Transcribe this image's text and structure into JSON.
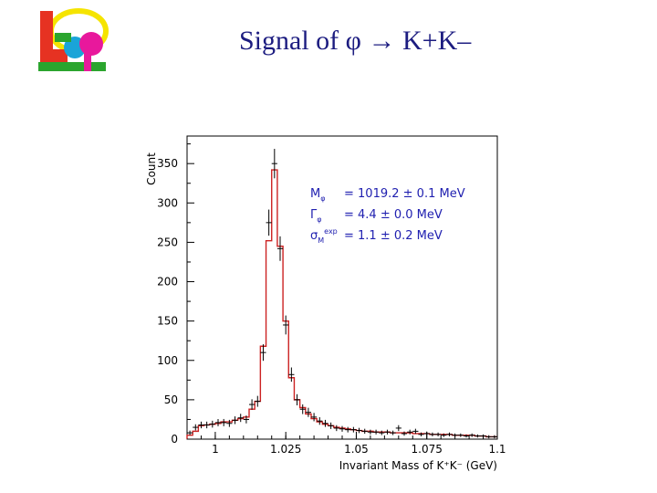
{
  "slide": {
    "title_prefix": "Signal of ",
    "title_phi": "φ",
    "title_arrow": " → ",
    "title_suffix": "K+K–"
  },
  "logo": {
    "name": "lcsp-logo-icon",
    "colors": [
      "#e63222",
      "#f5e400",
      "#1aa4d8",
      "#2ba52e",
      "#e8189c"
    ]
  },
  "chart_data": {
    "type": "bar",
    "style": "histogram-with-fit",
    "xlabel": "Invariant Mass of K⁺K⁻ (GeV)",
    "ylabel": "Count",
    "xlim": [
      0.99,
      1.1
    ],
    "ylim": [
      0,
      385
    ],
    "xticks": [
      1,
      1.025,
      1.05,
      1.075,
      1.1
    ],
    "xtick_labels": [
      "1",
      "1.025",
      "1.05",
      "1.075",
      "1.1"
    ],
    "yticks": [
      0,
      50,
      100,
      150,
      200,
      250,
      300,
      350
    ],
    "bin_width": 0.002,
    "x": [
      0.991,
      0.993,
      0.995,
      0.997,
      0.999,
      1.001,
      1.003,
      1.005,
      1.007,
      1.009,
      1.011,
      1.013,
      1.015,
      1.017,
      1.019,
      1.021,
      1.023,
      1.025,
      1.027,
      1.029,
      1.031,
      1.033,
      1.035,
      1.037,
      1.039,
      1.041,
      1.043,
      1.045,
      1.047,
      1.049,
      1.051,
      1.053,
      1.055,
      1.057,
      1.059,
      1.061,
      1.063,
      1.065,
      1.067,
      1.069,
      1.071,
      1.073,
      1.075,
      1.077,
      1.079,
      1.081,
      1.083,
      1.085,
      1.087,
      1.089,
      1.091,
      1.093,
      1.095,
      1.097,
      1.099
    ],
    "values": [
      8,
      15,
      18,
      18,
      19,
      21,
      21,
      20,
      24,
      27,
      25,
      44,
      48,
      110,
      275,
      350,
      242,
      145,
      82,
      50,
      38,
      34,
      28,
      23,
      20,
      17,
      14,
      13,
      12,
      12,
      11,
      10,
      9,
      9,
      8,
      9,
      8,
      14,
      7,
      9,
      10,
      6,
      7,
      6,
      6,
      5,
      6,
      5,
      5,
      4,
      5,
      4,
      4,
      3,
      3
    ],
    "fit": [
      5,
      10,
      17,
      18,
      19,
      20,
      22,
      22,
      24,
      26,
      28,
      38,
      48,
      118,
      252,
      342,
      245,
      150,
      78,
      50,
      40,
      32,
      26,
      22,
      19,
      17,
      15,
      14,
      13,
      12,
      11,
      10,
      10,
      9,
      9,
      9,
      8,
      8,
      8,
      8,
      7,
      7,
      7,
      6,
      6,
      6,
      6,
      5,
      5,
      5,
      5,
      4,
      4,
      3,
      3
    ],
    "colors": {
      "fit": "#cc2222",
      "data": "#000000"
    },
    "annotations": [
      {
        "label": "M",
        "sub": "φ",
        "value": "= 1019.2 ± 0.1 MeV"
      },
      {
        "label": "Γ",
        "sub": "φ",
        "value": "= 4.4 ± 0.0 MeV"
      },
      {
        "label": "σ",
        "sub": "M",
        "sup": "exp",
        "value": "= 1.1 ± 0.2 MeV"
      }
    ]
  }
}
